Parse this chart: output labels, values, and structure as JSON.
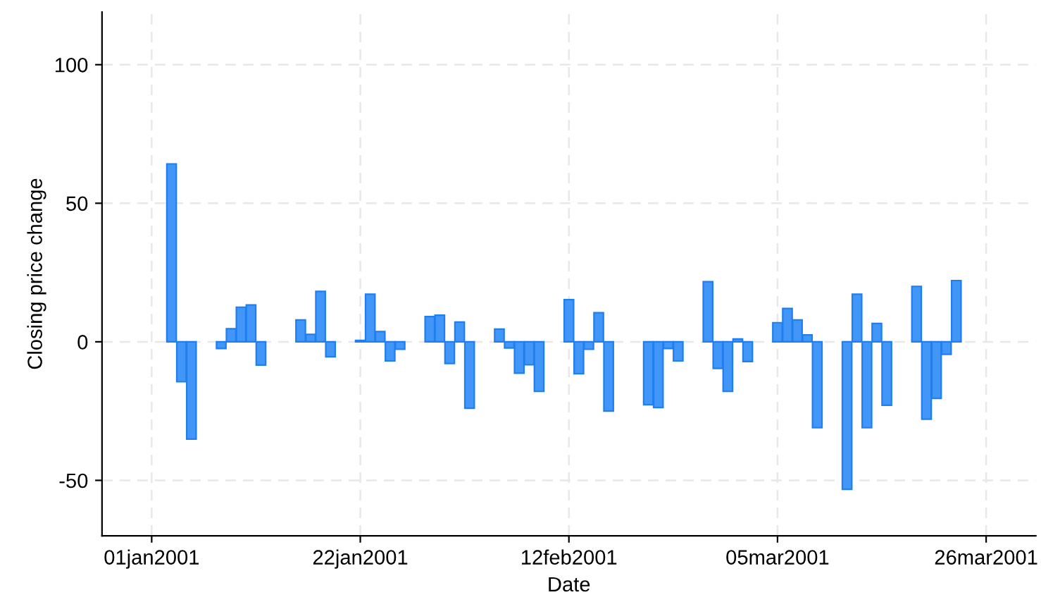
{
  "chart_data": {
    "type": "bar",
    "xlabel": "Date",
    "ylabel": "Closing price change",
    "x": [
      "2001-01-03",
      "2001-01-04",
      "2001-01-05",
      "2001-01-08",
      "2001-01-09",
      "2001-01-10",
      "2001-01-11",
      "2001-01-12",
      "2001-01-16",
      "2001-01-17",
      "2001-01-18",
      "2001-01-19",
      "2001-01-22",
      "2001-01-23",
      "2001-01-24",
      "2001-01-25",
      "2001-01-26",
      "2001-01-29",
      "2001-01-30",
      "2001-01-31",
      "2001-02-01",
      "2001-02-02",
      "2001-02-05",
      "2001-02-06",
      "2001-02-07",
      "2001-02-08",
      "2001-02-09",
      "2001-02-12",
      "2001-02-13",
      "2001-02-14",
      "2001-02-15",
      "2001-02-16",
      "2001-02-20",
      "2001-02-21",
      "2001-02-22",
      "2001-02-23",
      "2001-02-26",
      "2001-02-27",
      "2001-02-28",
      "2001-03-01",
      "2001-03-02",
      "2001-03-05",
      "2001-03-06",
      "2001-03-07",
      "2001-03-08",
      "2001-03-09",
      "2001-03-12",
      "2001-03-13",
      "2001-03-14",
      "2001-03-15",
      "2001-03-16",
      "2001-03-19",
      "2001-03-20",
      "2001-03-21",
      "2001-03-22",
      "2001-03-23"
    ],
    "series": [
      {
        "color": "#4196f7",
        "values": [
          64.2,
          -14.4,
          -35.1,
          -2.4,
          4.7,
          12.5,
          13.3,
          -8.4,
          7.9,
          2.7,
          18.2,
          -5.4,
          0.5,
          17.2,
          3.7,
          -6.9,
          -2.7,
          9.1,
          9.6,
          -7.8,
          7.1,
          -24.0,
          4.6,
          -2.2,
          -11.3,
          -8.3,
          -17.9,
          15.2,
          -11.5,
          -2.7,
          10.5,
          -25.0,
          -22.7,
          -23.7,
          -2.4,
          -6.9,
          21.7,
          -9.6,
          -17.9,
          1.0,
          -7.1,
          6.9,
          12.0,
          7.9,
          2.5,
          -31.0,
          -53.2,
          17.2,
          -31.0,
          6.6,
          -22.9,
          20.0,
          -27.9,
          -20.4,
          -4.5,
          22.1
        ]
      }
    ],
    "xlim": [
      "2000-12-27",
      "2001-03-31"
    ],
    "xticks": [
      {
        "value": "2001-01-01",
        "label": "01jan2001"
      },
      {
        "value": "2001-01-22",
        "label": "22jan2001"
      },
      {
        "value": "2001-02-12",
        "label": "12feb2001"
      },
      {
        "value": "2001-03-05",
        "label": "05mar2001"
      },
      {
        "value": "2001-03-26",
        "label": "26mar2001"
      }
    ],
    "ylim": [
      -70,
      119
    ],
    "yticks": [
      -50,
      0,
      50,
      100
    ],
    "grid": true
  }
}
